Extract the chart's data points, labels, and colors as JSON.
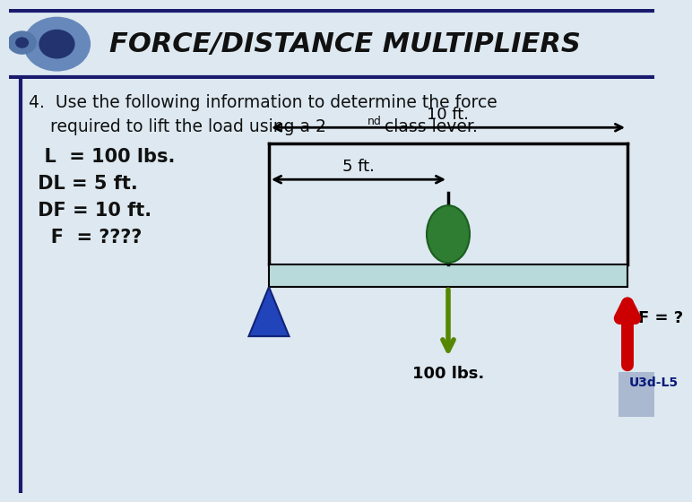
{
  "title": "FORCE/DISTANCE MULTIPLIERS",
  "title_fontsize": 22,
  "header_bg": "#ffffff",
  "header_line_color": "#1a1a6e",
  "body_bg": "#dde8f0",
  "lever_bar_color": "#b8dada",
  "lever_bar_edge": "#000000",
  "fulcrum_color": "#2244bb",
  "load_color": "#2e7d32",
  "force_arrow_color": "#cc0000",
  "load_arrow_color": "#558800",
  "arrow_label_100": "100 lbs.",
  "arrow_label_F": "F = ?",
  "label_10ft": "10 ft.",
  "label_5ft": "5 ft.",
  "watermark_text": "U3d-L5",
  "q_line1": "4.  Use the following information to determine the force",
  "q_line2": "    required to lift the load using a 2",
  "q_suffix": " class lever.",
  "q_superscript": "nd",
  "vars": [
    "  L  = 100 lbs.",
    " DL = 5 ft.",
    " DF = 10 ft.",
    "   F  = ????"
  ]
}
